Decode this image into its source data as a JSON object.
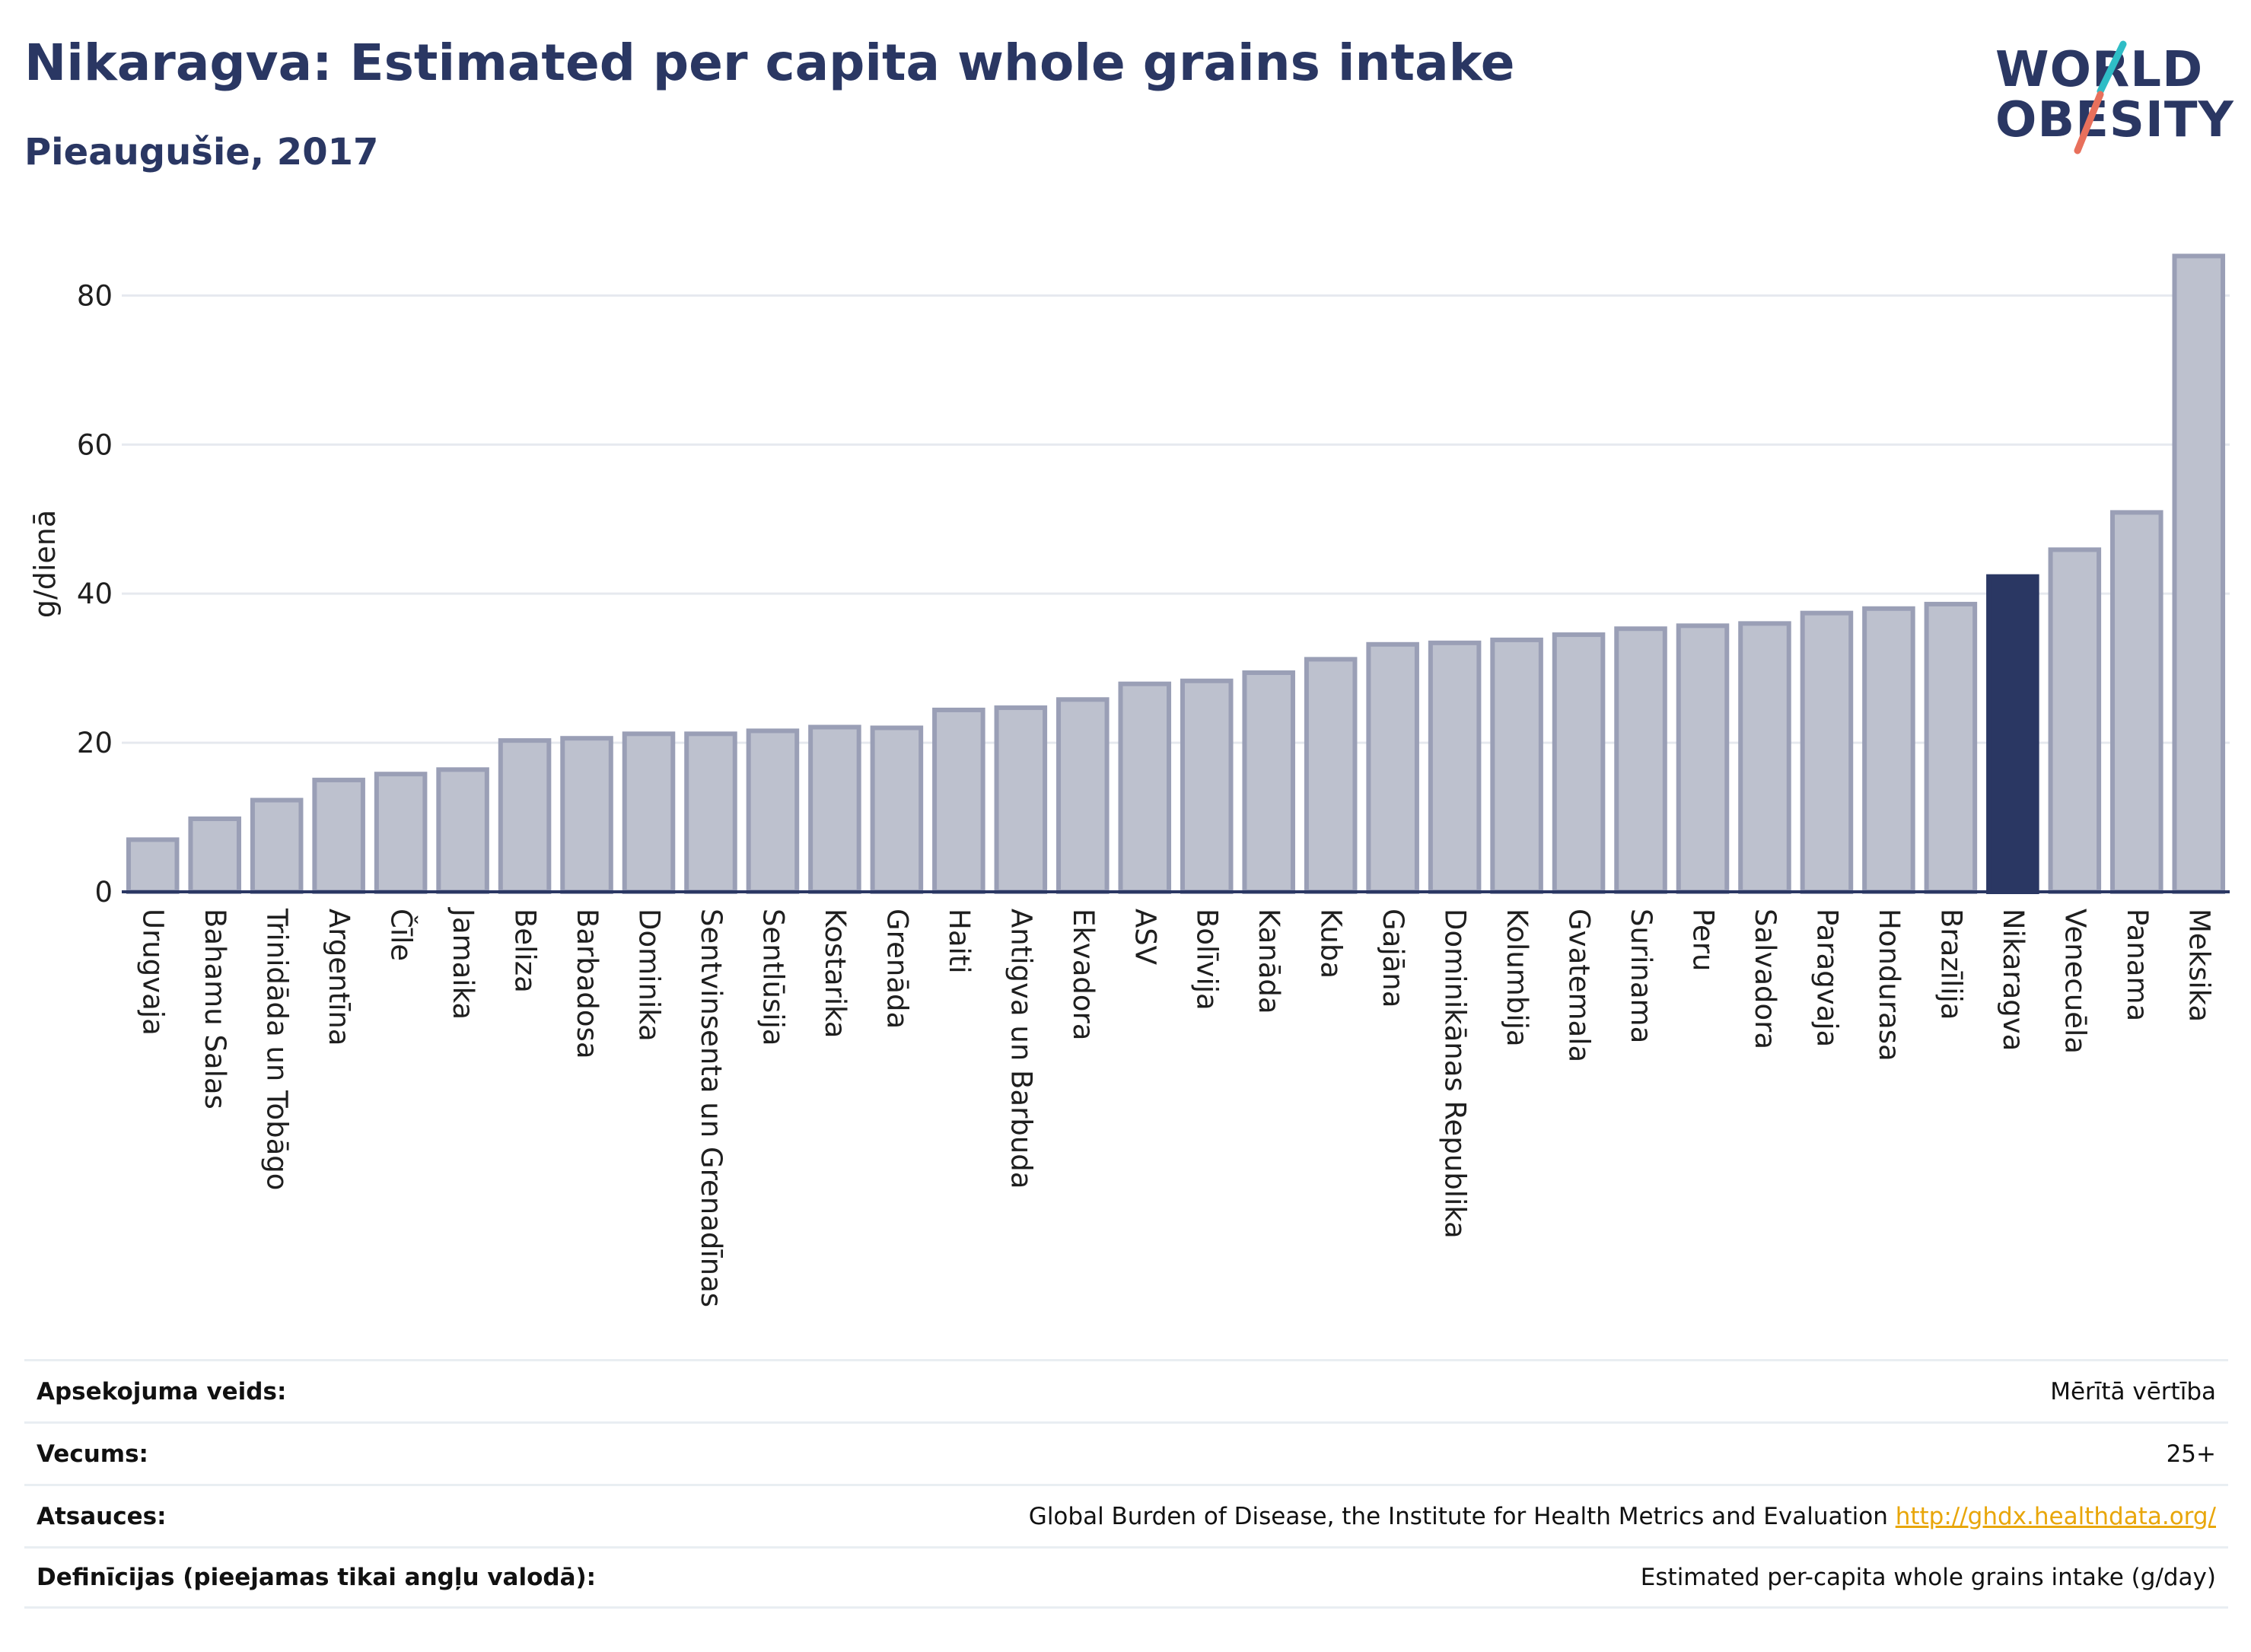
{
  "header": {
    "title": "Nikaragva: Estimated per capita whole grains intake",
    "subtitle": "Pieaugušie, 2017"
  },
  "logo": {
    "line1": "WORLD",
    "line2": "OBESITY",
    "accent_teal": "#2fbdc6",
    "accent_coral": "#e8705c"
  },
  "colors": {
    "bar": "#bdc1ce",
    "bar_edge": "#9a9fb6",
    "highlight": "#2a3763",
    "grid": "#e6e9ef",
    "axis": "#2a3763"
  },
  "chart_data": {
    "type": "bar",
    "ylabel": "g/dienā",
    "ylim": [
      0,
      88
    ],
    "yticks": [
      0,
      20,
      40,
      60,
      80
    ],
    "grid": true,
    "highlight": "Nikaragva",
    "categories": [
      "Urugvaja",
      "Bahamu Salas",
      "Trinidāda un Tobāgo",
      "Argentīna",
      "Čīle",
      "Jamaika",
      "Beliza",
      "Barbadosa",
      "Dominika",
      "Sentvinsenta un Grenadīnas",
      "Sentlūsija",
      "Kostarika",
      "Grenāda",
      "Haiti",
      "Antigva un Barbuda",
      "Ekvadora",
      "ASV",
      "Bolīvija",
      "Kanāda",
      "Kuba",
      "Gajāna",
      "Dominikānas Republika",
      "Kolumbija",
      "Gvatemala",
      "Surinama",
      "Peru",
      "Salvadora",
      "Paragvaja",
      "Hondurasa",
      "Brazīlija",
      "Nikaragva",
      "Venecuēla",
      "Panama",
      "Meksika"
    ],
    "values": [
      7.0,
      9.8,
      12.3,
      15.0,
      15.8,
      16.4,
      20.3,
      20.6,
      21.2,
      21.2,
      21.6,
      22.1,
      22.0,
      24.4,
      24.7,
      25.8,
      27.9,
      28.3,
      29.4,
      31.2,
      33.2,
      33.4,
      33.8,
      34.5,
      35.3,
      35.7,
      36.0,
      37.4,
      38.0,
      38.6,
      42.3,
      45.9,
      50.9,
      85.3
    ]
  },
  "info": [
    {
      "label": "Apsekojuma veids:",
      "value": "Mērītā vērtība"
    },
    {
      "label": "Vecums:",
      "value": "25+"
    },
    {
      "label": "Atsauces:",
      "value": "Global Burden of Disease, the Institute for Health Metrics and Evaluation",
      "link": "http://ghdx.healthdata.org/"
    },
    {
      "label": "Definīcijas (pieejamas tikai angļu valodā):",
      "value": "Estimated per-capita whole grains intake (g/day)"
    }
  ]
}
